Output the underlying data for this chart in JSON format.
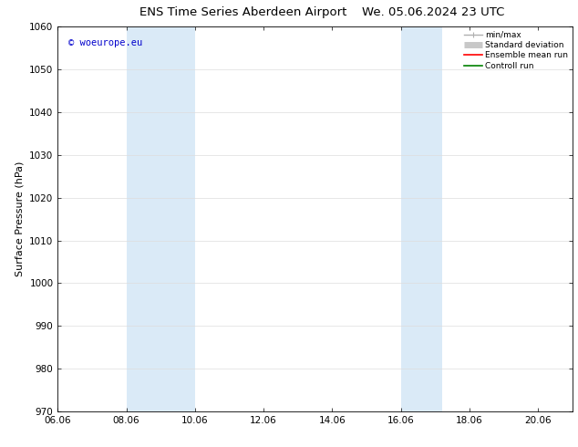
{
  "title_left": "ENS Time Series Aberdeen Airport",
  "title_right": "We. 05.06.2024 23 UTC",
  "ylabel": "Surface Pressure (hPa)",
  "ylim": [
    970,
    1060
  ],
  "yticks": [
    970,
    980,
    990,
    1000,
    1010,
    1020,
    1030,
    1040,
    1050,
    1060
  ],
  "xlim_num": [
    0,
    15
  ],
  "xtick_labels": [
    "06.06",
    "08.06",
    "10.06",
    "12.06",
    "14.06",
    "16.06",
    "18.06",
    "20.06"
  ],
  "xtick_positions": [
    0,
    2,
    4,
    6,
    8,
    10,
    12,
    14
  ],
  "shaded_bands": [
    {
      "xmin": 2,
      "xmax": 4,
      "color": "#daeaf7"
    },
    {
      "xmin": 10,
      "xmax": 11.2,
      "color": "#daeaf7"
    }
  ],
  "watermark_text": "© woeurope.eu",
  "watermark_color": "#0000cc",
  "legend_items": [
    {
      "label": "min/max",
      "color": "#b0b0b0",
      "lw": 1.0
    },
    {
      "label": "Standard deviation",
      "color": "#c8c8c8",
      "lw": 5
    },
    {
      "label": "Ensemble mean run",
      "color": "#ff0000",
      "lw": 1.2
    },
    {
      "label": "Controll run",
      "color": "#008000",
      "lw": 1.2
    }
  ],
  "bg_color": "#ffffff",
  "grid_color": "#dddddd",
  "title_fontsize": 9.5,
  "ylabel_fontsize": 8,
  "tick_fontsize": 7.5,
  "watermark_fontsize": 7.5,
  "legend_fontsize": 6.5
}
